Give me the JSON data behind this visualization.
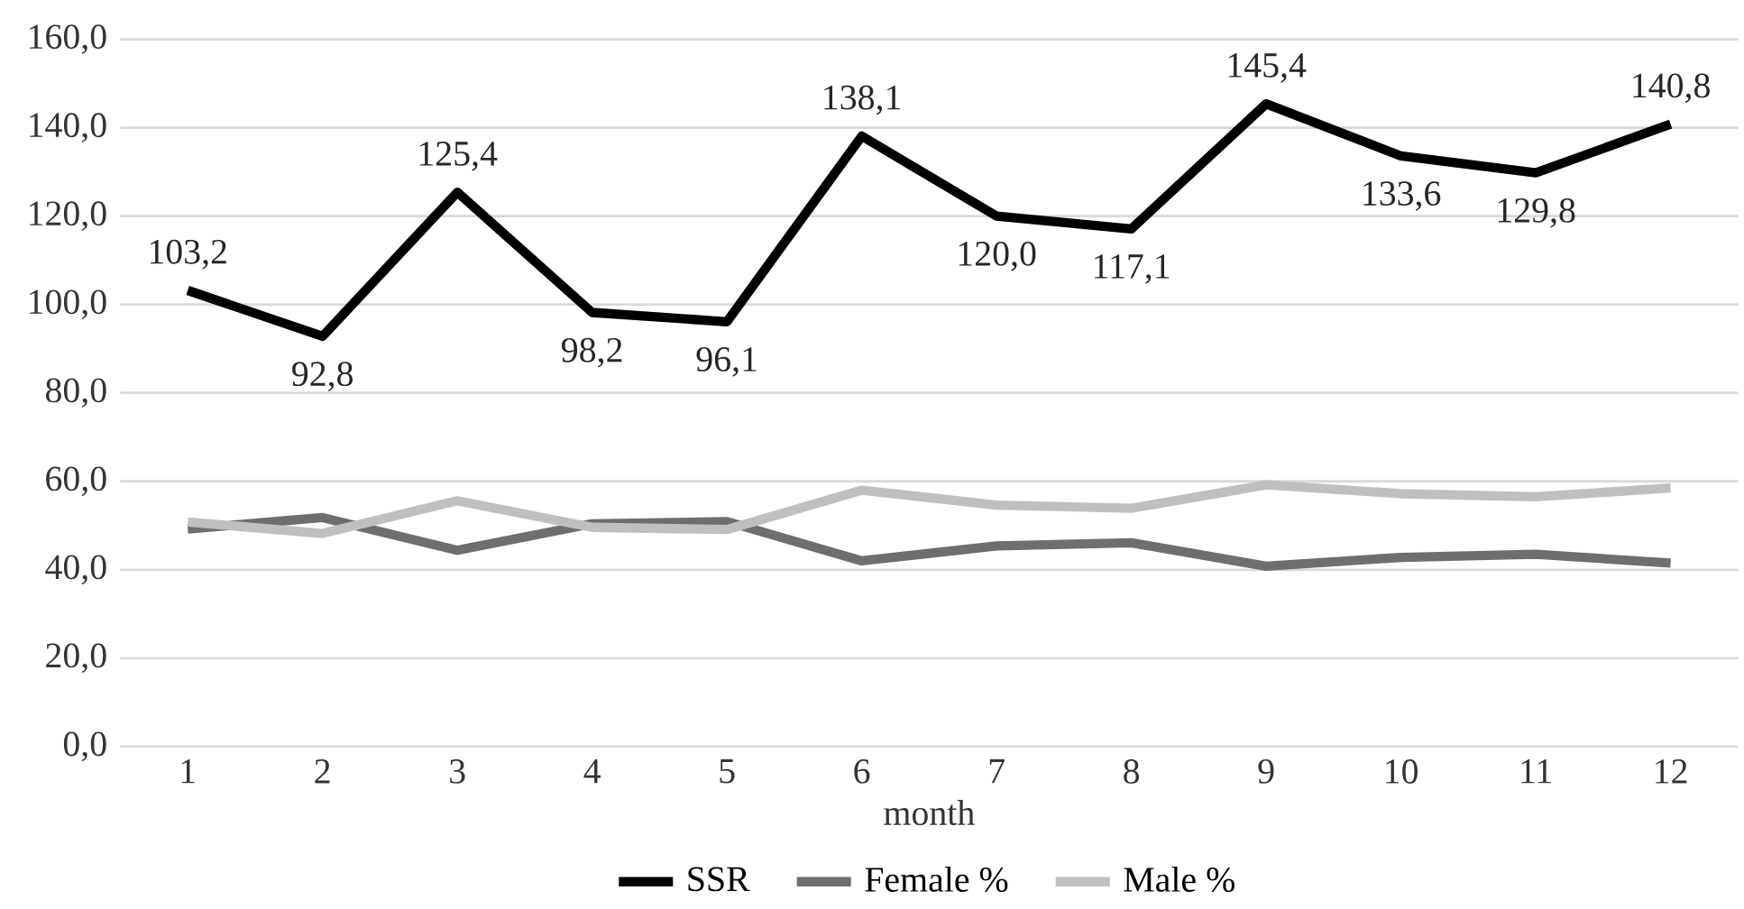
{
  "chart_data": {
    "type": "line",
    "xlabel": "month",
    "categories": [
      "1",
      "2",
      "3",
      "4",
      "5",
      "6",
      "7",
      "8",
      "9",
      "10",
      "11",
      "12"
    ],
    "series": [
      {
        "name": "SSR",
        "color": "#000000",
        "values": [
          103.2,
          92.8,
          125.4,
          98.2,
          96.1,
          138.1,
          120.0,
          117.1,
          145.4,
          133.6,
          129.8,
          140.8
        ],
        "value_labels": [
          "103,2",
          "92,8",
          "125,4",
          "98,2",
          "96,1",
          "138,1",
          "120,0",
          "117,1",
          "145,4",
          "133,6",
          "129,8",
          "140,8"
        ]
      },
      {
        "name": "Female %",
        "color": "#6e6e6e",
        "values": [
          49.2,
          51.8,
          44.4,
          50.4,
          50.9,
          42.0,
          45.4,
          46.1,
          40.8,
          42.8,
          43.5,
          41.5
        ]
      },
      {
        "name": "Male %",
        "color": "#bfbfbf",
        "values": [
          50.8,
          48.2,
          55.6,
          49.6,
          49.1,
          58.0,
          54.6,
          53.9,
          59.2,
          57.2,
          56.5,
          58.5
        ]
      }
    ],
    "ylim": [
      0,
      160
    ],
    "yticks": [
      {
        "value": 0,
        "label": "0,0"
      },
      {
        "value": 20,
        "label": "20,0"
      },
      {
        "value": 40,
        "label": "40,0"
      },
      {
        "value": 60,
        "label": "60,0"
      },
      {
        "value": 80,
        "label": "80,0"
      },
      {
        "value": 100,
        "label": "100,0"
      },
      {
        "value": 120,
        "label": "120,0"
      },
      {
        "value": 140,
        "label": "140,0"
      },
      {
        "value": 160,
        "label": "160,0"
      }
    ],
    "grid": "y",
    "legend": "bottom",
    "marker": "none",
    "line_style": "solid"
  }
}
